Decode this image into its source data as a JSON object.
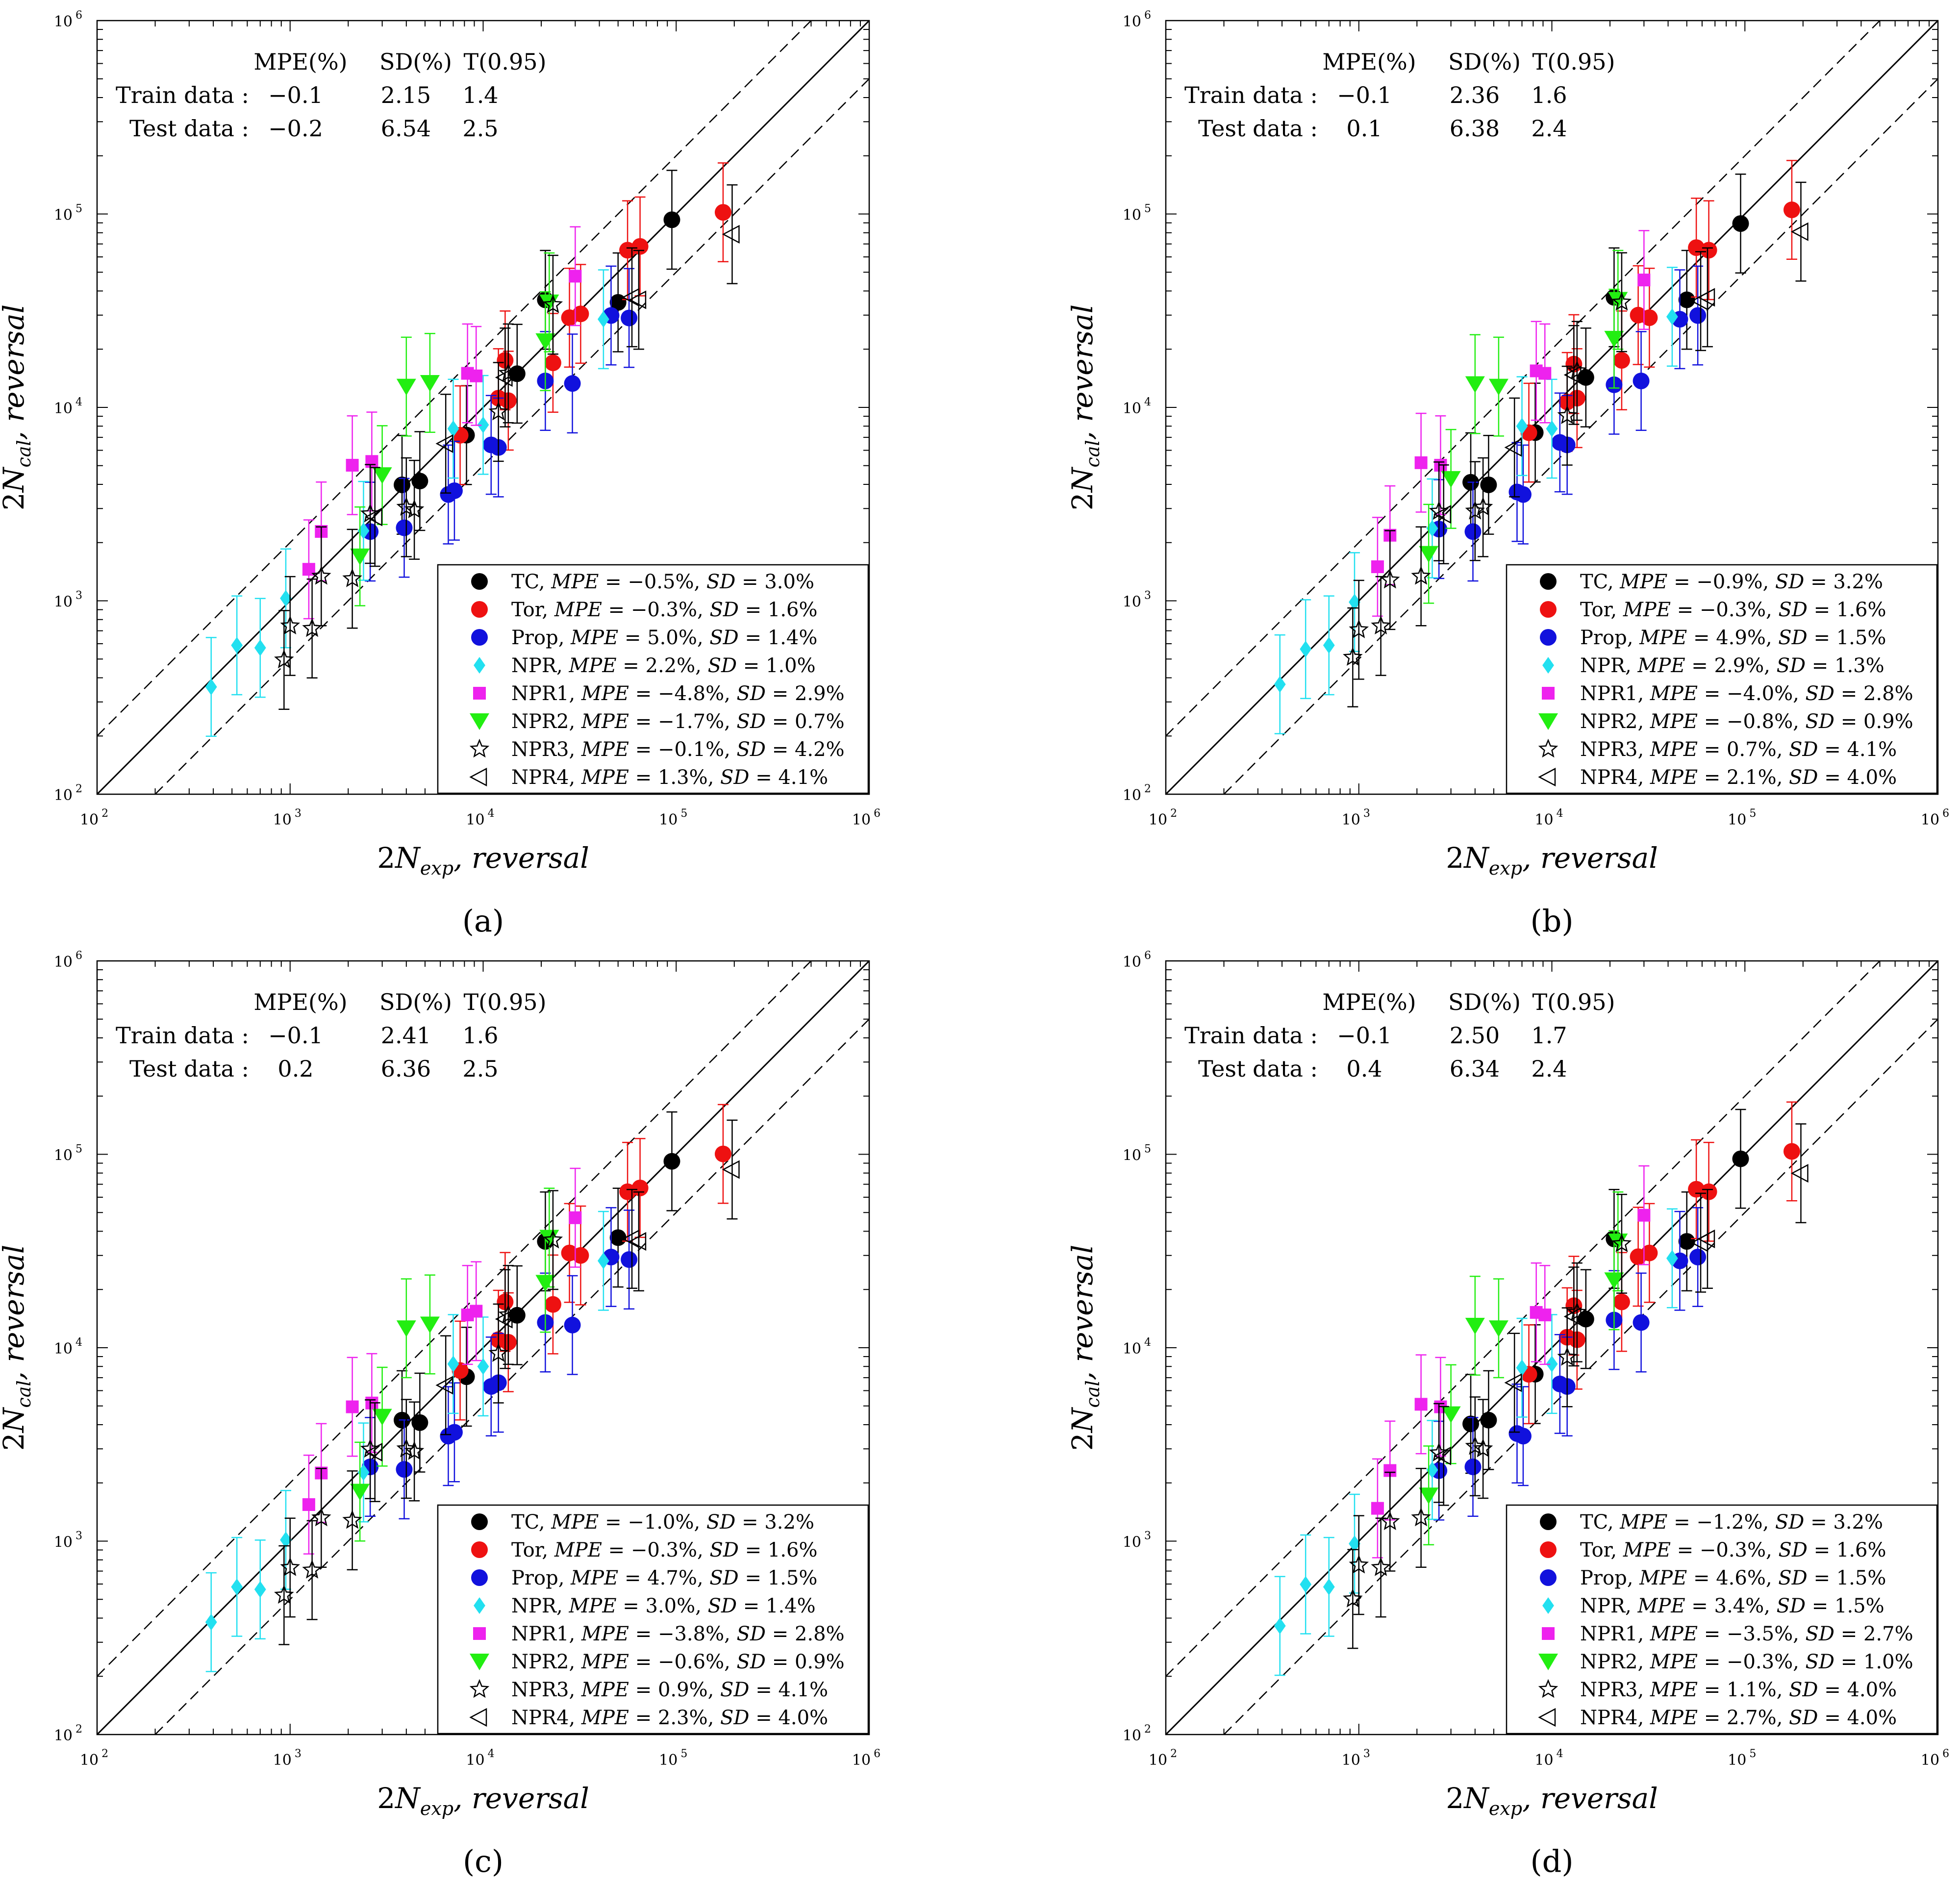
{
  "figure": {
    "type": "scatter",
    "colors": {
      "TC": "#000000",
      "Tor": "#ee1111",
      "Prop": "#1111dd",
      "NPR": "#22e0f0",
      "NPR1": "#ee22ee",
      "NPR2": "#22ee11",
      "NPR3": "#000000",
      "NPR4": "#000000"
    },
    "markers": {
      "TC": "circle",
      "Tor": "circle",
      "Prop": "circle",
      "NPR": "diamond",
      "NPR1": "square",
      "NPR2": "triangle-down",
      "NPR3": "star",
      "NPR4": "triangle-left"
    },
    "points": {
      "TC": [
        [
          3800.0,
          4100.0
        ],
        [
          4700.0,
          4100.0
        ],
        [
          8200.0,
          7300.0
        ],
        [
          15000.0,
          14500.0
        ],
        [
          21000.0,
          36000.0
        ],
        [
          50000.0,
          36000.0
        ],
        [
          95000.0,
          92000.0
        ]
      ],
      "Tor": [
        [
          7600.0,
          7400.0
        ],
        [
          12000.0,
          11000.0
        ],
        [
          13500.0,
          11000.0
        ],
        [
          13000.0,
          17000.0
        ],
        [
          23000.0,
          17000.0
        ],
        [
          28000.0,
          30000.0
        ],
        [
          32000.0,
          30000.0
        ],
        [
          56000.0,
          66000.0
        ],
        [
          65000.0,
          66000.0
        ],
        [
          175000.0,
          102000.0
        ]
      ],
      "Prop": [
        [
          2600.0,
          2350.0
        ],
        [
          3900.0,
          2350.0
        ],
        [
          6600.0,
          3600.0
        ],
        [
          7100.0,
          3600.0
        ],
        [
          11000.0,
          6400.0
        ],
        [
          12000.0,
          6400.0
        ],
        [
          21000.0,
          13500.0
        ],
        [
          29000.0,
          13500.0
        ],
        [
          46000.0,
          29000.0
        ],
        [
          57000.0,
          29000.0
        ]
      ],
      "NPR": [
        [
          390.0,
          370.0
        ],
        [
          530.0,
          580.0
        ],
        [
          700.0,
          580.0
        ],
        [
          950.0,
          1000.0
        ],
        [
          2400.0,
          2300.0
        ],
        [
          7000.0,
          8000.0
        ],
        [
          10000.0,
          8000.0
        ],
        [
          42000.0,
          29000.0
        ]
      ],
      "NPR1": [
        [
          1250.0,
          1500.0
        ],
        [
          1450.0,
          2250.0
        ],
        [
          2100.0,
          5100.0
        ],
        [
          2650.0,
          5100.0
        ],
        [
          8300.0,
          15000.0
        ],
        [
          9200.0,
          15000.0
        ],
        [
          30000.0,
          47000.0
        ]
      ],
      "NPR2": [
        [
          2300.0,
          1750.0
        ],
        [
          3000.0,
          4400.0
        ],
        [
          4000.0,
          13000.0
        ],
        [
          5300.0,
          13000.0
        ],
        [
          21000.0,
          22000.0
        ],
        [
          22000.0,
          36000.0
        ]
      ],
      "NPR3": [
        [
          930.0,
          510.0
        ],
        [
          1000.0,
          730.0
        ],
        [
          1300.0,
          730.0
        ],
        [
          1450.0,
          1300.0
        ],
        [
          2100.0,
          1300.0
        ],
        [
          2600.0,
          2900.0
        ],
        [
          4000.0,
          3000.0
        ],
        [
          4400.0,
          3000.0
        ],
        [
          12000.0,
          9200.0
        ],
        [
          13500.0,
          15000.0
        ],
        [
          23000.0,
          35000.0
        ]
      ],
      "NPR4": [
        [
          2750.0,
          2800.0
        ],
        [
          6400.0,
          6400.0
        ],
        [
          13000.0,
          14500.0
        ],
        [
          59000.0,
          36000.0
        ],
        [
          64000.0,
          36000.0
        ],
        [
          195000.0,
          81000.0
        ]
      ]
    },
    "xlim": [
      100,
      1000000
    ],
    "ylim": [
      100,
      1000000
    ],
    "x_tick_labels": [
      "10 2",
      "10 3",
      "10 4",
      "10 5",
      "10 6"
    ],
    "y_tick_labels": [
      "10 2",
      "10 3",
      "10 4",
      "10 5",
      "10 6"
    ]
  },
  "subplots": [
    {
      "label": "(a)",
      "xlabel_num": "2",
      "xlabel_var": "N",
      "xlabel_sub": "exp",
      "xlabel_rest": ", reversal",
      "ylabel_num": "2",
      "ylabel_var": "N",
      "ylabel_sub": "cal",
      "ylabel_rest": ", reversal",
      "stats": {
        "header": [
          "MPE(%)",
          "SD(%)",
          "T(0.95)"
        ],
        "rows": [
          {
            "label": "Train data :",
            "mpe": "−0.1",
            "sd": "2.15",
            "t": "1.4"
          },
          {
            "label": "Test data :",
            "mpe": "−0.2",
            "sd": "6.54",
            "t": "2.5"
          }
        ]
      },
      "legend": [
        {
          "name": "TC",
          "mpe": "−0.5%",
          "sd": "3.0%"
        },
        {
          "name": "Tor",
          "mpe": "−0.3%",
          "sd": "1.6%"
        },
        {
          "name": "Prop",
          "mpe": "5.0%",
          "sd": "1.4%"
        },
        {
          "name": "NPR",
          "mpe": "2.2%",
          "sd": "1.0%"
        },
        {
          "name": "NPR1",
          "mpe": "−4.8%",
          "sd": "2.9%"
        },
        {
          "name": "NPR2",
          "mpe": "−1.7%",
          "sd": "0.7%"
        },
        {
          "name": "NPR3",
          "mpe": "−0.1%",
          "sd": "4.2%"
        },
        {
          "name": "NPR4",
          "mpe": "1.3%",
          "sd": "4.1%"
        }
      ]
    },
    {
      "label": "(b)",
      "xlabel_num": "2",
      "xlabel_var": "N",
      "xlabel_sub": "exp",
      "xlabel_rest": ", reversal",
      "ylabel_num": "2",
      "ylabel_var": "N",
      "ylabel_sub": "cal",
      "ylabel_rest": ", reversal",
      "stats": {
        "header": [
          "MPE(%)",
          "SD(%)",
          "T(0.95)"
        ],
        "rows": [
          {
            "label": "Train data :",
            "mpe": "−0.1",
            "sd": "2.36",
            "t": "1.6"
          },
          {
            "label": "Test data :",
            "mpe": "0.1",
            "sd": "6.38",
            "t": "2.4"
          }
        ]
      },
      "legend": [
        {
          "name": "TC",
          "mpe": "−0.9%",
          "sd": "3.2%"
        },
        {
          "name": "Tor",
          "mpe": "−0.3%",
          "sd": "1.6%"
        },
        {
          "name": "Prop",
          "mpe": "4.9%",
          "sd": "1.5%"
        },
        {
          "name": "NPR",
          "mpe": "2.9%",
          "sd": "1.3%"
        },
        {
          "name": "NPR1",
          "mpe": "−4.0%",
          "sd": "2.8%"
        },
        {
          "name": "NPR2",
          "mpe": "−0.8%",
          "sd": "0.9%"
        },
        {
          "name": "NPR3",
          "mpe": "0.7%",
          "sd": "4.1%"
        },
        {
          "name": "NPR4",
          "mpe": "2.1%",
          "sd": "4.0%"
        }
      ]
    },
    {
      "label": "(c)",
      "xlabel_num": "2",
      "xlabel_var": "N",
      "xlabel_sub": "exp",
      "xlabel_rest": ", reversal",
      "ylabel_num": "2",
      "ylabel_var": "N",
      "ylabel_sub": "cal",
      "ylabel_rest": ", reversal",
      "stats": {
        "header": [
          "MPE(%)",
          "SD(%)",
          "T(0.95)"
        ],
        "rows": [
          {
            "label": "Train data :",
            "mpe": "−0.1",
            "sd": "2.41",
            "t": "1.6"
          },
          {
            "label": "Test data :",
            "mpe": "0.2",
            "sd": "6.36",
            "t": "2.5"
          }
        ]
      },
      "legend": [
        {
          "name": "TC",
          "mpe": "−1.0%",
          "sd": "3.2%"
        },
        {
          "name": "Tor",
          "mpe": "−0.3%",
          "sd": "1.6%"
        },
        {
          "name": "Prop",
          "mpe": "4.7%",
          "sd": "1.5%"
        },
        {
          "name": "NPR",
          "mpe": "3.0%",
          "sd": "1.4%"
        },
        {
          "name": "NPR1",
          "mpe": "−3.8%",
          "sd": "2.8%"
        },
        {
          "name": "NPR2",
          "mpe": "−0.6%",
          "sd": "0.9%"
        },
        {
          "name": "NPR3",
          "mpe": "0.9%",
          "sd": "4.1%"
        },
        {
          "name": "NPR4",
          "mpe": "2.3%",
          "sd": "4.0%"
        }
      ]
    },
    {
      "label": "(d)",
      "xlabel_num": "2",
      "xlabel_var": "N",
      "xlabel_sub": "exp",
      "xlabel_rest": ", reversal",
      "ylabel_num": "2",
      "ylabel_var": "N",
      "ylabel_sub": "cal",
      "ylabel_rest": ", reversal",
      "stats": {
        "header": [
          "MPE(%)",
          "SD(%)",
          "T(0.95)"
        ],
        "rows": [
          {
            "label": "Train data :",
            "mpe": "−0.1",
            "sd": "2.50",
            "t": "1.7"
          },
          {
            "label": "Test data :",
            "mpe": "0.4",
            "sd": "6.34",
            "t": "2.4"
          }
        ]
      },
      "legend": [
        {
          "name": "TC",
          "mpe": "−1.2%",
          "sd": "3.2%"
        },
        {
          "name": "Tor",
          "mpe": "−0.3%",
          "sd": "1.6%"
        },
        {
          "name": "Prop",
          "mpe": "4.6%",
          "sd": "1.5%"
        },
        {
          "name": "NPR",
          "mpe": "3.4%",
          "sd": "1.5%"
        },
        {
          "name": "NPR1",
          "mpe": "−3.5%",
          "sd": "2.7%"
        },
        {
          "name": "NPR2",
          "mpe": "−0.3%",
          "sd": "1.0%"
        },
        {
          "name": "NPR3",
          "mpe": "1.1%",
          "sd": "4.0%"
        },
        {
          "name": "NPR4",
          "mpe": "2.7%",
          "sd": "4.0%"
        }
      ]
    }
  ],
  "chart_data": [
    {
      "type": "scatter",
      "title": "(a)",
      "xlabel": "2N_exp, reversal",
      "ylabel": "2N_cal, reversal",
      "xlim": [
        100,
        1000000
      ],
      "ylim": [
        100,
        1000000
      ],
      "xscale": "log",
      "yscale": "log",
      "legend": "bottom-right",
      "series_names": [
        "TC",
        "Tor",
        "Prop",
        "NPR",
        "NPR1",
        "NPR2",
        "NPR3",
        "NPR4"
      ]
    },
    {
      "type": "scatter",
      "title": "(b)",
      "xlabel": "2N_exp, reversal",
      "ylabel": "2N_cal, reversal",
      "xlim": [
        100,
        1000000
      ],
      "ylim": [
        100,
        1000000
      ],
      "xscale": "log",
      "yscale": "log",
      "legend": "bottom-right",
      "series_names": [
        "TC",
        "Tor",
        "Prop",
        "NPR",
        "NPR1",
        "NPR2",
        "NPR3",
        "NPR4"
      ]
    },
    {
      "type": "scatter",
      "title": "(c)",
      "xlabel": "2N_exp, reversal",
      "ylabel": "2N_cal, reversal",
      "xlim": [
        100,
        1000000
      ],
      "ylim": [
        100,
        1000000
      ],
      "xscale": "log",
      "yscale": "log",
      "legend": "bottom-right",
      "series_names": [
        "TC",
        "Tor",
        "Prop",
        "NPR",
        "NPR1",
        "NPR2",
        "NPR3",
        "NPR4"
      ]
    },
    {
      "type": "scatter",
      "title": "(d)",
      "xlabel": "2N_exp, reversal",
      "ylabel": "2N_cal, reversal",
      "xlim": [
        100,
        1000000
      ],
      "ylim": [
        100,
        1000000
      ],
      "xscale": "log",
      "yscale": "log",
      "legend": "bottom-right",
      "series_names": [
        "TC",
        "Tor",
        "Prop",
        "NPR",
        "NPR1",
        "NPR2",
        "NPR3",
        "NPR4"
      ]
    }
  ]
}
